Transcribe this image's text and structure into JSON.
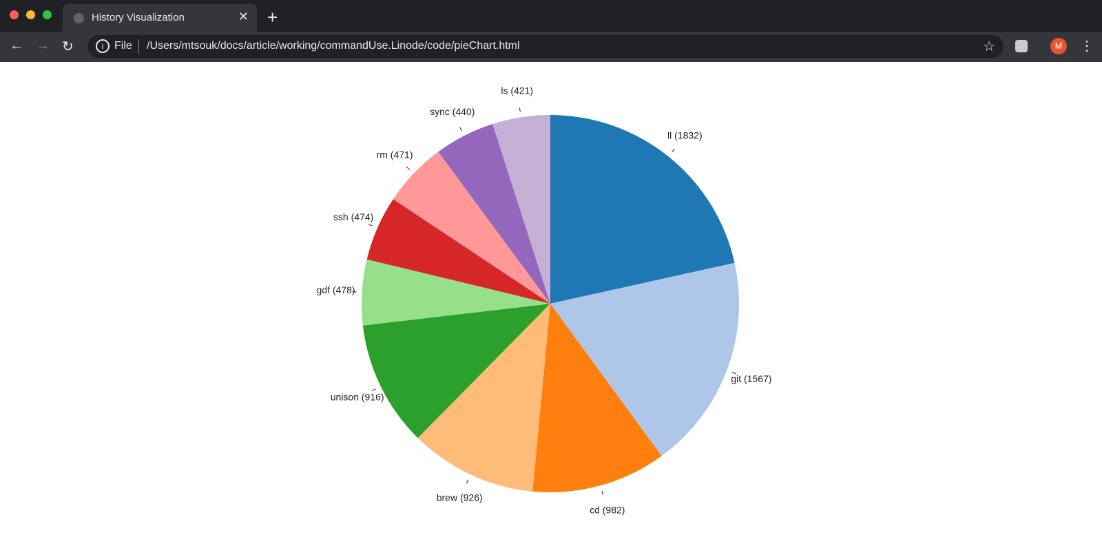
{
  "browser": {
    "tab_title": "History Visualization",
    "address_scheme": "File",
    "url": "/Users/mtsouk/docs/article/working/commandUse.Linode/code/pieChart.html",
    "avatar": "M"
  },
  "chart_data": {
    "type": "pie",
    "values": [
      1832,
      1567,
      982,
      926,
      916,
      478,
      474,
      471,
      440,
      421
    ],
    "value_labels": [
      "ll (1832)",
      "git (1567)",
      "cd (982)",
      "brew (926)",
      "unison (916)",
      "gdf (478)",
      "ssh (474)",
      "rm (471)",
      "sync (440)",
      "ls (421)"
    ],
    "colors": [
      "#1f77b4",
      "#aec7e8",
      "#ff7f0e",
      "#ffbb78",
      "#2ca02c",
      "#98df8a",
      "#d62728",
      "#ff9896",
      "#9467bd",
      "#c5b0d5"
    ]
  }
}
